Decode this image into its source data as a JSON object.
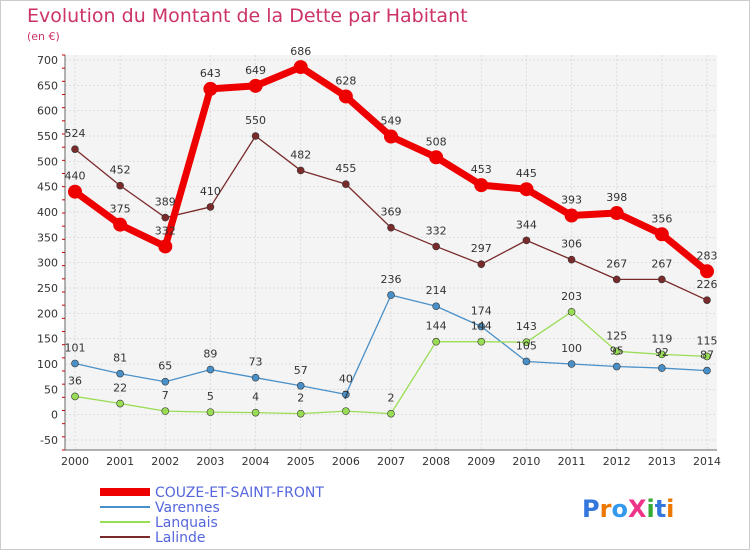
{
  "chart_data": {
    "type": "line",
    "title": "Evolution du Montant de la Dette par Habitant",
    "subtitle": "(en €)",
    "x": [
      "2000",
      "2001",
      "2002",
      "2003",
      "2004",
      "2005",
      "2006",
      "2007",
      "2008",
      "2009",
      "2010",
      "2011",
      "2012",
      "2013",
      "2014"
    ],
    "y_ticks": [
      -50,
      0,
      50,
      100,
      150,
      200,
      250,
      300,
      350,
      400,
      450,
      500,
      550,
      600,
      650,
      700
    ],
    "ylim": [
      -50,
      700
    ],
    "grid": true,
    "legend_position": "bottom-left",
    "series": [
      {
        "name": "COUZE-ET-SAINT-FRONT",
        "color": "#ee0000",
        "values": [
          440,
          375,
          332,
          643,
          649,
          686,
          628,
          549,
          508,
          453,
          445,
          393,
          398,
          356,
          283
        ]
      },
      {
        "name": "Varennes",
        "color": "#4a90c8",
        "values": [
          101,
          81,
          65,
          89,
          73,
          57,
          40,
          236,
          214,
          174,
          105,
          100,
          95,
          92,
          87
        ]
      },
      {
        "name": "Lanquais",
        "color": "#99dd55",
        "values": [
          36,
          22,
          7,
          5,
          4,
          2,
          7,
          2,
          144,
          144,
          143,
          203,
          125,
          119,
          115
        ]
      },
      {
        "name": "Lalinde",
        "color": "#7a2a2a",
        "values": [
          524,
          452,
          389,
          410,
          550,
          482,
          455,
          369,
          332,
          297,
          344,
          306,
          267,
          267,
          226
        ]
      }
    ]
  },
  "logo": {
    "text": "ProXiti"
  }
}
